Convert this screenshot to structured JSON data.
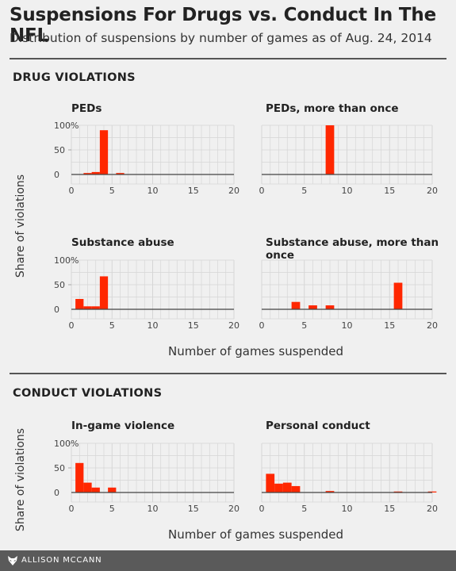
{
  "header": {
    "title": "Suspensions For Drugs vs. Conduct In The NFL",
    "subtitle": "Distribution of suspensions by number of games as of Aug. 24, 2014"
  },
  "sections": {
    "drug": "DRUG VIOLATIONS",
    "conduct": "CONDUCT VIOLATIONS"
  },
  "axes": {
    "xlabel": "Number of games suspended",
    "ylabel": "Share of violations"
  },
  "colors": {
    "bar": "#ff2700",
    "grid": "#d6d6d6",
    "background": "#f0f0f0"
  },
  "footer": {
    "credit": "ALLISON MCCANN",
    "logo_icon": "fox-icon"
  },
  "chart_data": [
    {
      "type": "bar",
      "title": "PEDs",
      "xlim": [
        0,
        20
      ],
      "ylim": [
        0,
        100
      ],
      "xticks": [
        "0",
        "5",
        "10",
        "15",
        "20"
      ],
      "yticks": [
        "0",
        "50",
        "100%"
      ],
      "x": [
        2,
        3,
        4,
        6
      ],
      "values": [
        3,
        5,
        90,
        3
      ]
    },
    {
      "type": "bar",
      "title": "PEDs, more than once",
      "xlim": [
        0,
        20
      ],
      "ylim": [
        0,
        100
      ],
      "xticks": [
        "0",
        "5",
        "10",
        "15",
        "20"
      ],
      "yticks": [],
      "x": [
        8
      ],
      "values": [
        100
      ]
    },
    {
      "type": "bar",
      "title": "Substance abuse",
      "xlim": [
        0,
        20
      ],
      "ylim": [
        0,
        100
      ],
      "xticks": [
        "0",
        "5",
        "10",
        "15",
        "20"
      ],
      "yticks": [
        "0",
        "50",
        "100%"
      ],
      "x": [
        1,
        2,
        3,
        4
      ],
      "values": [
        21,
        6,
        6,
        67
      ]
    },
    {
      "type": "bar",
      "title": "Substance abuse, more than once",
      "xlim": [
        0,
        20
      ],
      "ylim": [
        0,
        100
      ],
      "xticks": [
        "0",
        "5",
        "10",
        "15",
        "20"
      ],
      "yticks": [],
      "x": [
        4,
        6,
        8,
        16
      ],
      "values": [
        15,
        8,
        8,
        54
      ]
    },
    {
      "type": "bar",
      "title": "In-game violence",
      "xlim": [
        0,
        20
      ],
      "ylim": [
        0,
        100
      ],
      "xticks": [
        "0",
        "5",
        "10",
        "15",
        "20"
      ],
      "yticks": [
        "0",
        "50",
        "100%"
      ],
      "x": [
        1,
        2,
        3,
        5
      ],
      "values": [
        60,
        20,
        10,
        10
      ]
    },
    {
      "type": "bar",
      "title": "Personal conduct",
      "xlim": [
        0,
        20
      ],
      "ylim": [
        0,
        100
      ],
      "xticks": [
        "0",
        "5",
        "10",
        "15",
        "20"
      ],
      "yticks": [],
      "x": [
        1,
        2,
        3,
        4,
        8,
        16,
        20
      ],
      "values": [
        38,
        18,
        20,
        13,
        3,
        2,
        2
      ]
    }
  ]
}
